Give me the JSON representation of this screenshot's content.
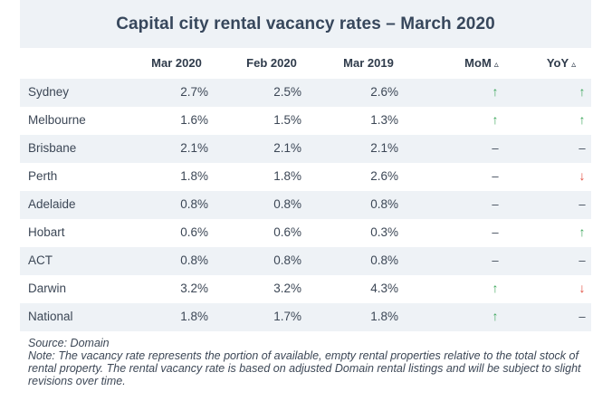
{
  "title": "Capital city rental vacancy rates – March 2020",
  "columns": {
    "mar2020": "Mar 2020",
    "feb2020": "Feb 2020",
    "mar2019": "Mar 2019",
    "mom": "MoM",
    "yoy": "YoY",
    "delta_symbol": "▵"
  },
  "rows": [
    {
      "city": "Sydney",
      "mar2020": "2.7%",
      "feb2020": "2.5%",
      "mar2019": "2.6%",
      "mom": "↑",
      "yoy": "↑"
    },
    {
      "city": "Melbourne",
      "mar2020": "1.6%",
      "feb2020": "1.5%",
      "mar2019": "1.3%",
      "mom": "↑",
      "yoy": "↑"
    },
    {
      "city": "Brisbane",
      "mar2020": "2.1%",
      "feb2020": "2.1%",
      "mar2019": "2.1%",
      "mom": "–",
      "yoy": "–"
    },
    {
      "city": "Perth",
      "mar2020": "1.8%",
      "feb2020": "1.8%",
      "mar2019": "2.6%",
      "mom": "–",
      "yoy": "↓"
    },
    {
      "city": "Adelaide",
      "mar2020": "0.8%",
      "feb2020": "0.8%",
      "mar2019": "0.8%",
      "mom": "–",
      "yoy": "–"
    },
    {
      "city": "Hobart",
      "mar2020": "0.6%",
      "feb2020": "0.6%",
      "mar2019": "0.3%",
      "mom": "–",
      "yoy": "↑"
    },
    {
      "city": "ACT",
      "mar2020": "0.8%",
      "feb2020": "0.8%",
      "mar2019": "0.8%",
      "mom": "–",
      "yoy": "–"
    },
    {
      "city": "Darwin",
      "mar2020": "3.2%",
      "feb2020": "3.2%",
      "mar2019": "4.3%",
      "mom": "↑",
      "yoy": "↓"
    },
    {
      "city": "National",
      "mar2020": "1.8%",
      "feb2020": "1.7%",
      "mar2019": "1.8%",
      "mom": "↑",
      "yoy": "–"
    }
  ],
  "source": "Source: Domain",
  "note": "Note: The vacancy rate represents the portion of available, empty rental properties relative to the total stock of rental property. The rental vacancy rate is based on adjusted Domain rental listings and will be subject to slight revisions over time.",
  "colors": {
    "up": "#3aa65a",
    "down": "#e24b3b",
    "stripe": "#eef2f6"
  }
}
